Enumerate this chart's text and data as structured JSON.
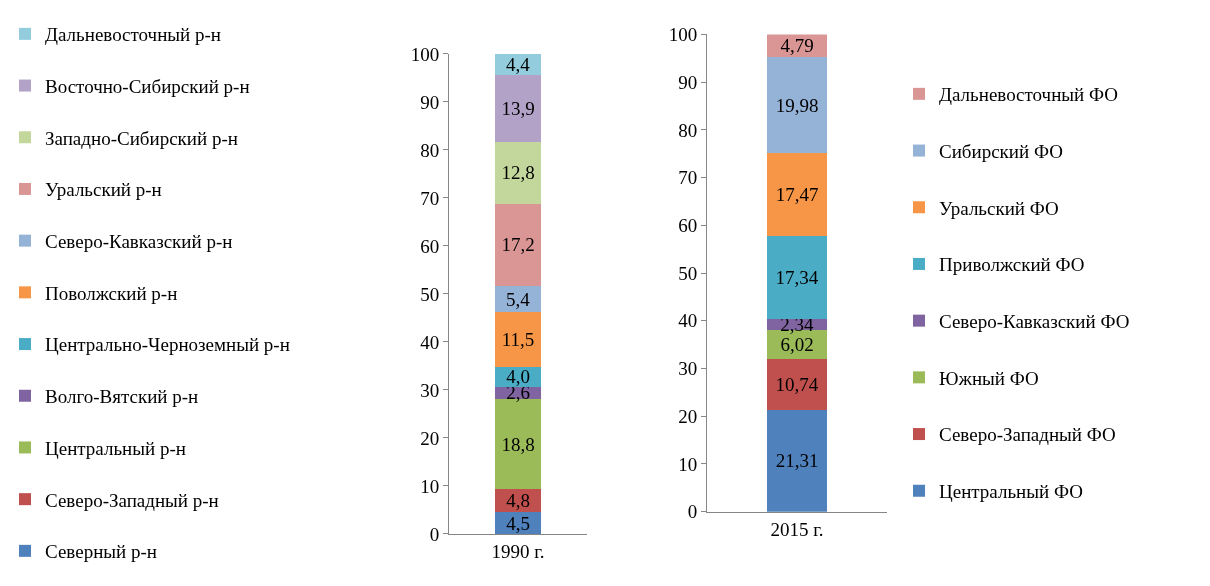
{
  "chart_data": [
    {
      "type": "bar",
      "stacked": true,
      "categories": [
        "1990 г."
      ],
      "ylim": [
        0,
        100
      ],
      "yticks": [
        0,
        10,
        20,
        30,
        40,
        50,
        60,
        70,
        80,
        90,
        100
      ],
      "legend": "left",
      "series": [
        {
          "name": "Северный р-н",
          "color": "#4f81bd",
          "values": [
            4.5
          ],
          "value_labels": [
            "4,5"
          ]
        },
        {
          "name": "Северо-Западный р-н",
          "color": "#c0504d",
          "values": [
            4.8
          ],
          "value_labels": [
            "4,8"
          ]
        },
        {
          "name": "Центральный р-н",
          "color": "#9bbb59",
          "values": [
            18.8
          ],
          "value_labels": [
            "18,8"
          ]
        },
        {
          "name": "Волго-Вятский р-н",
          "color": "#8064a2",
          "values": [
            2.6
          ],
          "value_labels": [
            "2,6"
          ]
        },
        {
          "name": "Центрально-Черноземный р-н",
          "color": "#4bacc6",
          "values": [
            4.0
          ],
          "value_labels": [
            "4,0"
          ]
        },
        {
          "name": "Поволжский р-н",
          "color": "#f79646",
          "values": [
            11.5
          ],
          "value_labels": [
            "11,5"
          ]
        },
        {
          "name": "Северо-Кавказский р-н",
          "color": "#95b3d7",
          "values": [
            5.4
          ],
          "value_labels": [
            "5,4"
          ]
        },
        {
          "name": "Уральский р-н",
          "color": "#d99694",
          "values": [
            17.2
          ],
          "value_labels": [
            "17,2"
          ]
        },
        {
          "name": "Западно-Сибирский р-н",
          "color": "#c3d69b",
          "values": [
            12.8
          ],
          "value_labels": [
            "12,8"
          ]
        },
        {
          "name": "Восточно-Сибирский р-н",
          "color": "#b3a2c7",
          "values": [
            13.9
          ],
          "value_labels": [
            "13,9"
          ]
        },
        {
          "name": "Дальневосточный р-н",
          "color": "#93cddd",
          "values": [
            4.4
          ],
          "value_labels": [
            "4,4"
          ]
        }
      ]
    },
    {
      "type": "bar",
      "stacked": true,
      "categories": [
        "2015 г."
      ],
      "ylim": [
        0,
        100
      ],
      "yticks": [
        0,
        10,
        20,
        30,
        40,
        50,
        60,
        70,
        80,
        90,
        100
      ],
      "legend": "right",
      "series": [
        {
          "name": "Центральный ФО",
          "color": "#4f81bd",
          "values": [
            21.31
          ],
          "value_labels": [
            "21,31"
          ]
        },
        {
          "name": "Северо-Западный ФО",
          "color": "#c0504d",
          "values": [
            10.74
          ],
          "value_labels": [
            "10,74"
          ]
        },
        {
          "name": "Южный ФО",
          "color": "#9bbb59",
          "values": [
            6.02
          ],
          "value_labels": [
            "6,02"
          ]
        },
        {
          "name": "Северо-Кавказский ФО",
          "color": "#8064a2",
          "values": [
            2.34
          ],
          "value_labels": [
            "2,34"
          ]
        },
        {
          "name": "Приволжский ФО",
          "color": "#4bacc6",
          "values": [
            17.34
          ],
          "value_labels": [
            "17,34"
          ]
        },
        {
          "name": "Уральский ФО",
          "color": "#f79646",
          "values": [
            17.47
          ],
          "value_labels": [
            "17,47"
          ]
        },
        {
          "name": "Сибирский ФО",
          "color": "#95b3d7",
          "values": [
            19.98
          ],
          "value_labels": [
            "19,98"
          ]
        },
        {
          "name": "Дальневосточный ФО",
          "color": "#d99694",
          "values": [
            4.79
          ],
          "value_labels": [
            "4,79"
          ]
        }
      ]
    }
  ]
}
